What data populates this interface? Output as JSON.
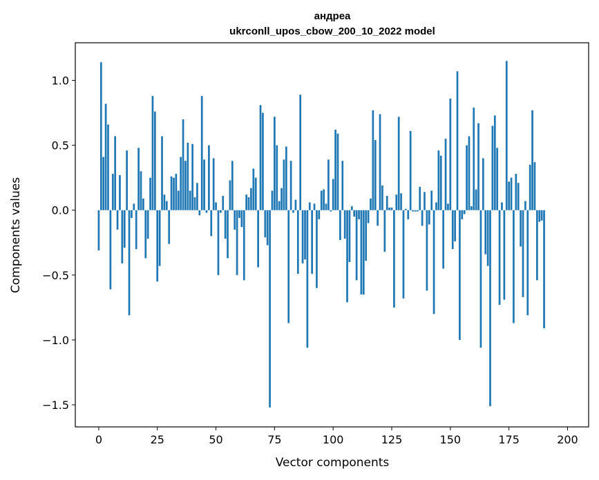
{
  "chart_data": {
    "type": "bar",
    "title": "андреа",
    "subtitle": "ukrconll_upos_cbow_200_10_2022 model",
    "xlabel": "Vector components",
    "ylabel": "Components values",
    "xlim": [
      -10,
      209
    ],
    "ylim": [
      -1.67,
      1.29
    ],
    "xticks": [
      0,
      25,
      50,
      75,
      100,
      125,
      150,
      175,
      200
    ],
    "yticks": [
      -1.5,
      -1.0,
      -0.5,
      0.0,
      0.5,
      1.0
    ],
    "ytick_labels": [
      "−1.5",
      "−1.0",
      "−0.5",
      "0.0",
      "0.5",
      "1.0"
    ],
    "bar_color": "#1f77b4",
    "grid": false,
    "values": [
      -0.31,
      1.14,
      0.41,
      0.82,
      0.66,
      -0.61,
      0.28,
      0.57,
      -0.15,
      0.27,
      -0.41,
      -0.29,
      0.46,
      -0.81,
      -0.06,
      0.05,
      -0.3,
      0.48,
      0.3,
      0.09,
      -0.37,
      -0.22,
      0.25,
      0.88,
      0.76,
      -0.55,
      -0.43,
      0.57,
      0.12,
      0.07,
      -0.26,
      0.26,
      0.25,
      0.28,
      0.15,
      0.41,
      0.7,
      0.38,
      0.52,
      0.15,
      0.51,
      0.1,
      0.21,
      -0.04,
      0.88,
      0.39,
      -0.02,
      0.5,
      -0.2,
      0.4,
      0.06,
      -0.5,
      -0.02,
      0.11,
      -0.22,
      -0.37,
      0.23,
      0.38,
      -0.15,
      -0.5,
      -0.06,
      -0.13,
      -0.54,
      0.12,
      0.1,
      0.17,
      0.32,
      0.25,
      -0.44,
      0.81,
      0.75,
      -0.21,
      -0.27,
      -1.52,
      0.15,
      0.72,
      0.5,
      0.07,
      0.17,
      0.39,
      0.49,
      -0.87,
      0.38,
      -0.02,
      0.08,
      -0.49,
      0.89,
      -0.41,
      -0.38,
      -1.06,
      0.06,
      -0.49,
      0.05,
      -0.6,
      -0.07,
      0.15,
      0.16,
      0.05,
      0.39,
      -0.01,
      0.24,
      0.62,
      0.59,
      -0.23,
      0.38,
      -0.22,
      -0.71,
      -0.4,
      0.03,
      -0.05,
      -0.54,
      -0.07,
      -0.65,
      -0.65,
      -0.39,
      -0.1,
      0.09,
      0.77,
      0.54,
      -0.12,
      0.74,
      0.19,
      -0.32,
      0.11,
      0.02,
      0.02,
      -0.75,
      0.12,
      0.72,
      0.13,
      -0.68,
      0.01,
      -0.07,
      0.61,
      -0.01,
      -0.01,
      -0.01,
      0.18,
      -0.12,
      0.14,
      -0.62,
      -0.11,
      0.15,
      -0.8,
      0.06,
      0.46,
      0.42,
      -0.45,
      0.55,
      0.05,
      0.86,
      -0.3,
      -0.24,
      1.07,
      -1.0,
      -0.07,
      -0.03,
      0.5,
      0.57,
      0.03,
      0.79,
      0.16,
      0.67,
      -1.06,
      0.4,
      -0.34,
      -0.43,
      -1.51,
      0.65,
      0.73,
      0.48,
      -0.73,
      0.06,
      -0.69,
      1.15,
      0.22,
      0.25,
      -0.87,
      0.28,
      0.21,
      -0.28,
      -0.67,
      0.07,
      -0.81,
      0.35,
      0.77,
      0.37,
      -0.54,
      -0.09,
      -0.08,
      -0.91
    ]
  }
}
